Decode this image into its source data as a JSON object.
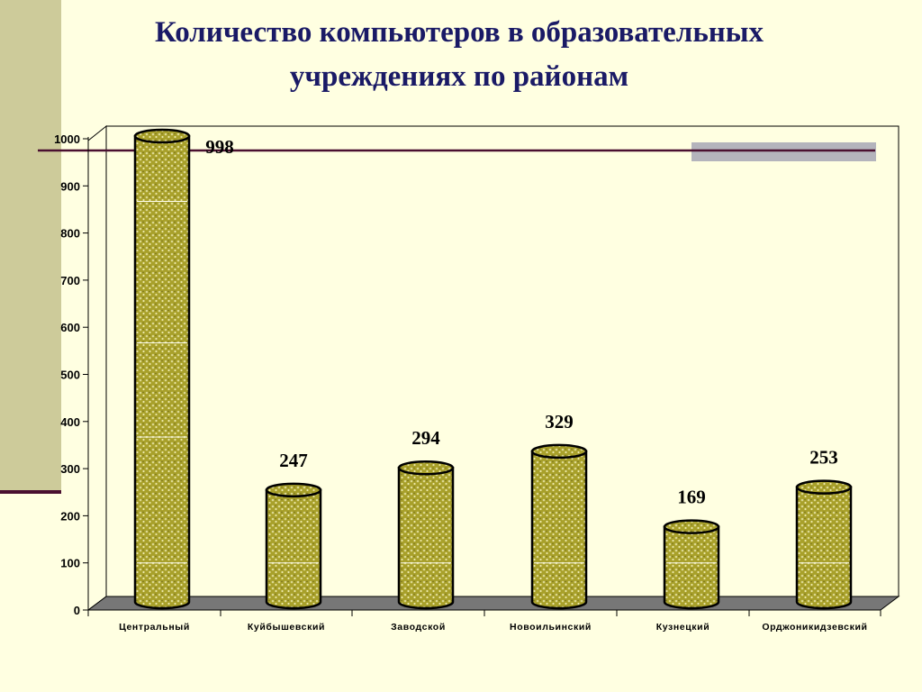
{
  "title_lines": [
    "Количество компьютеров в образовательных",
    "учреждениях по районам"
  ],
  "colors": {
    "background": "#ffffe1",
    "bar_fill": "#a8a02a",
    "bar_dots": "#d8d488",
    "floor": "#777777",
    "accent_line": "#4a1030",
    "title": "#1a1a66"
  },
  "chart_data": {
    "type": "bar",
    "bar_style": "3d-cylinder",
    "title": "Количество компьютеров в образовательных учреждениях по районам",
    "categories": [
      "Центральный",
      "Куйбышевский",
      "Заводской",
      "Новоильинский",
      "Кузнецкий",
      "Орджоникидзевский"
    ],
    "values": [
      998,
      247,
      294,
      329,
      169,
      253
    ],
    "data_labels": [
      "998",
      "247",
      "294",
      "329",
      "169",
      "253"
    ],
    "yticks": [
      0,
      100,
      200,
      300,
      400,
      500,
      600,
      700,
      800,
      900,
      1000
    ],
    "ylim": [
      0,
      1000
    ],
    "xlabel": "",
    "ylabel": "",
    "grid": false,
    "legend": "none"
  }
}
